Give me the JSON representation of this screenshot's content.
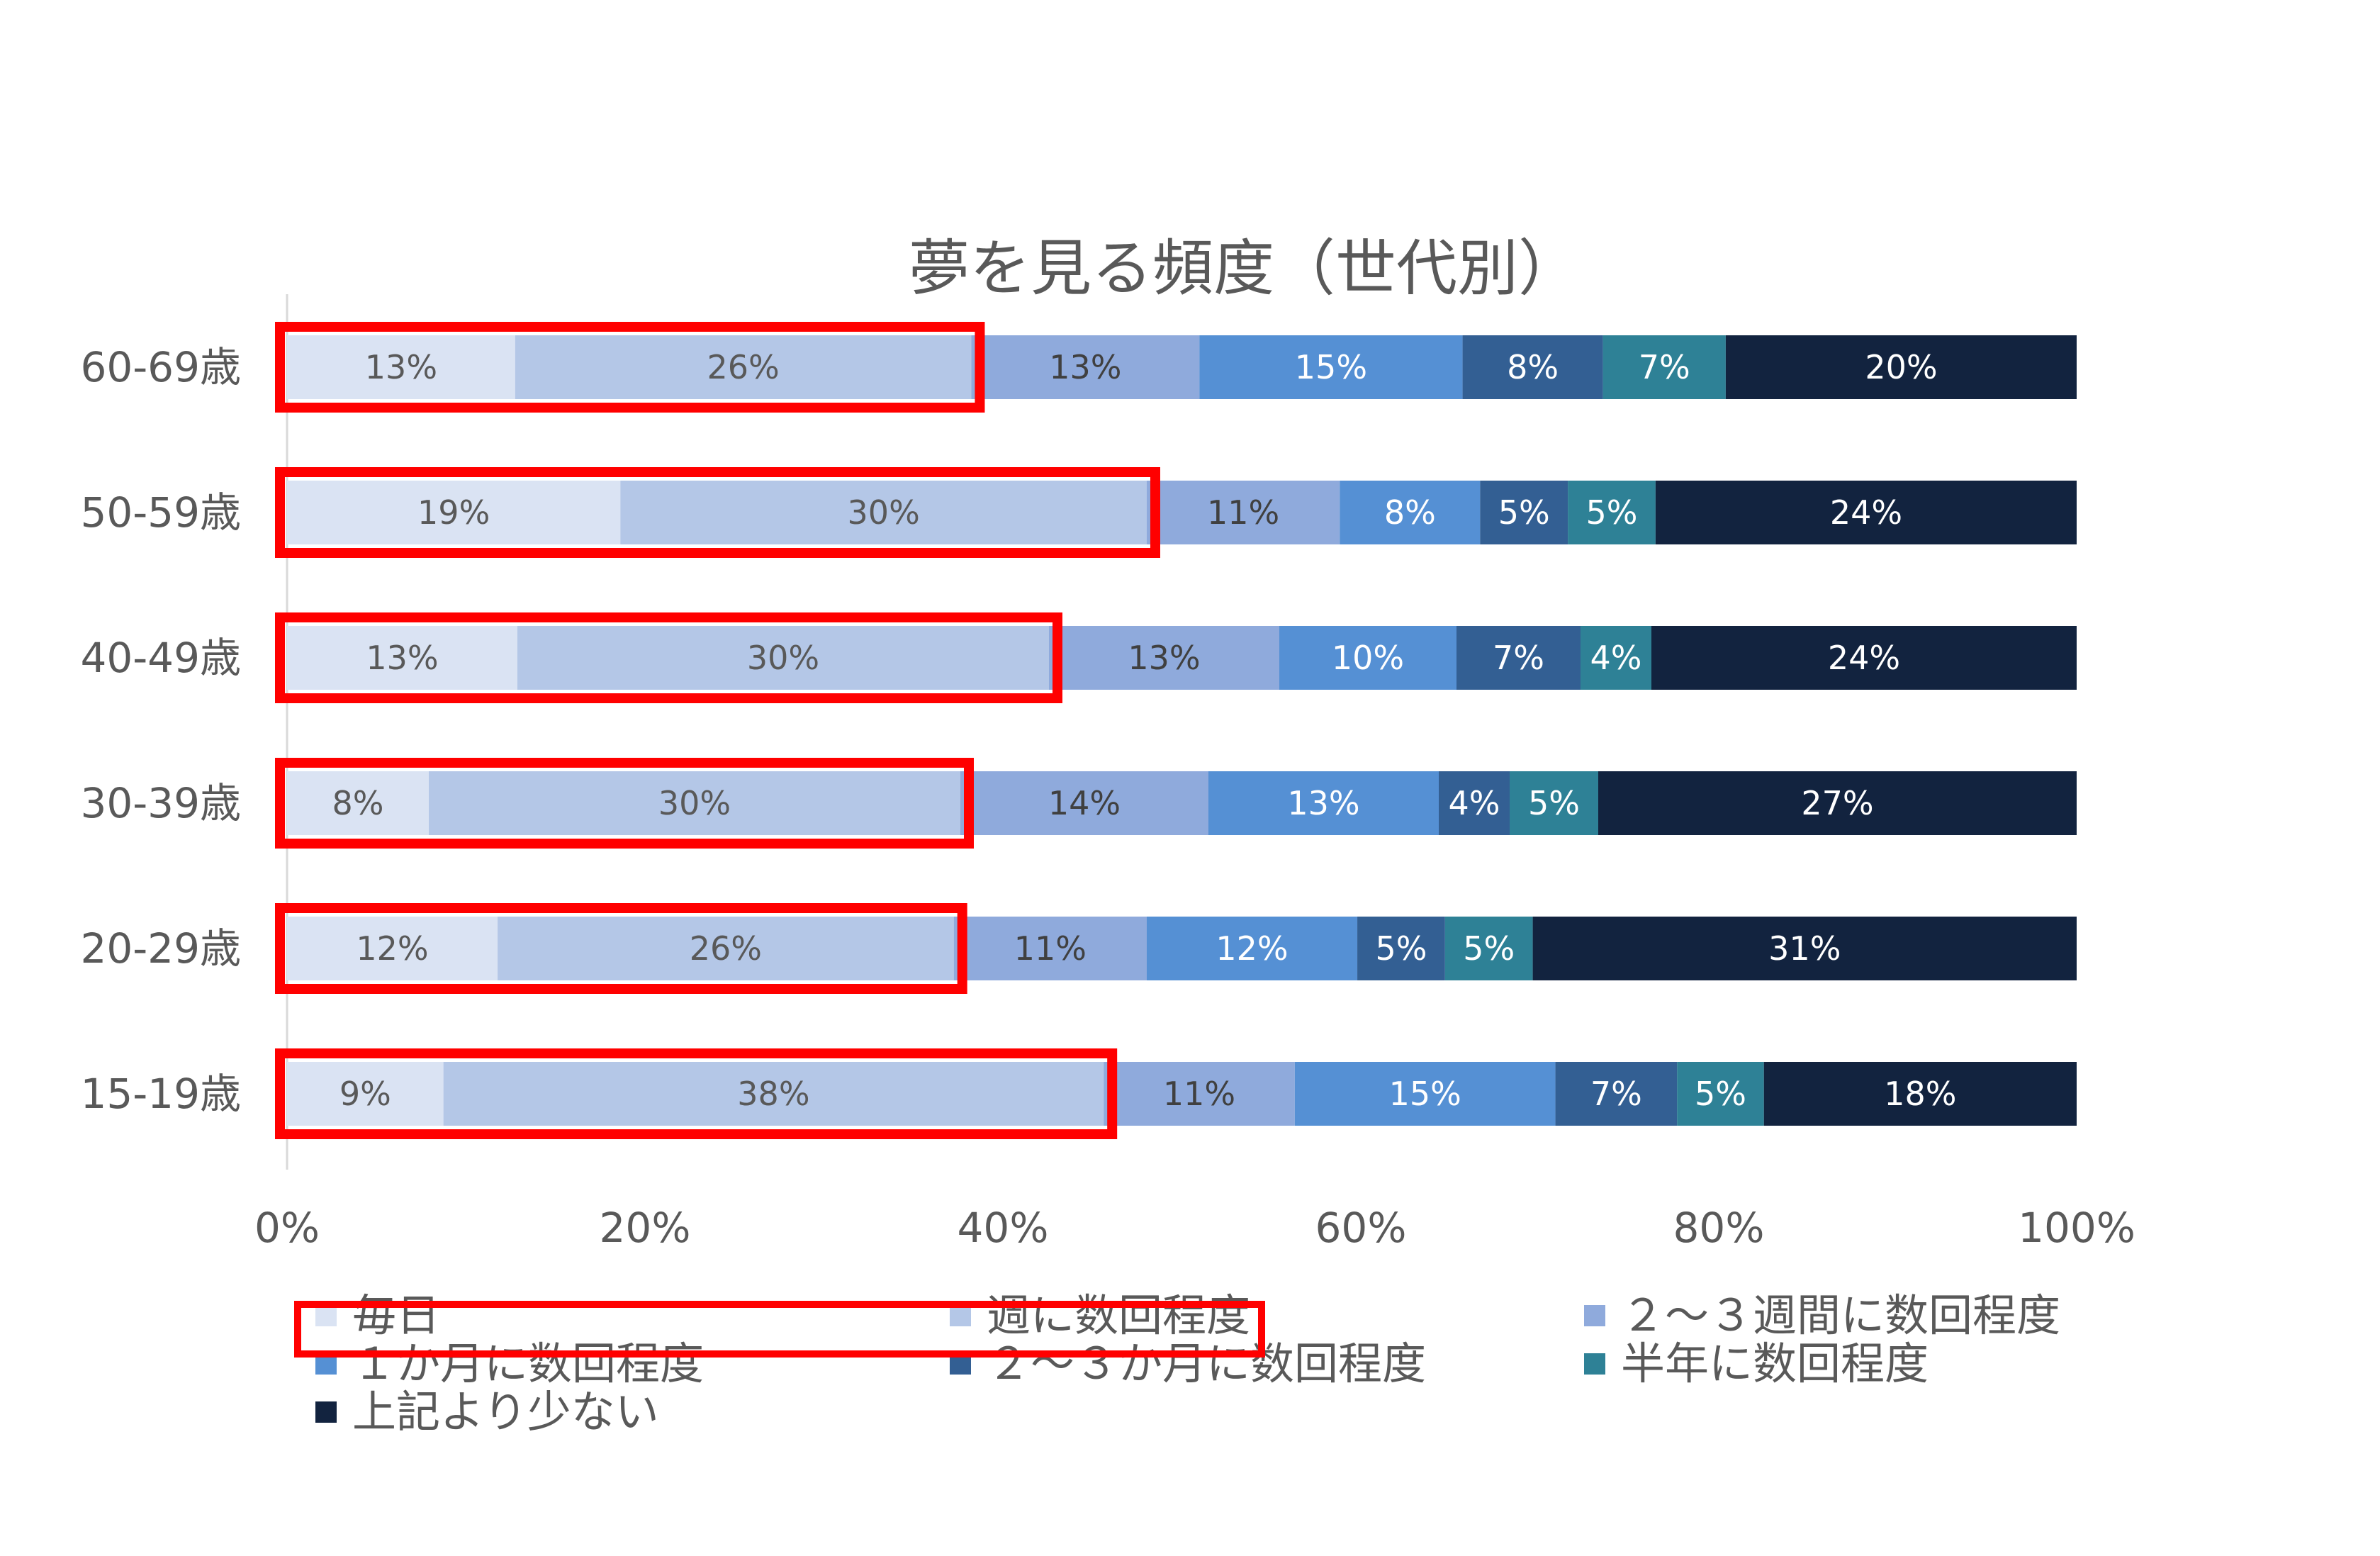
{
  "chart_data": {
    "type": "bar",
    "orientation": "horizontal",
    "stacked": "percent",
    "title": "夢を見る頻度（世代別）",
    "categories": [
      "60-69歳",
      "50-59歳",
      "40-49歳",
      "30-39歳",
      "20-29歳",
      "15-19歳"
    ],
    "series": [
      {
        "name": "毎日",
        "color": "#DAE3F3",
        "labels": [
          "13%",
          "19%",
          "13%",
          "8%",
          "12%",
          "9%"
        ],
        "values": [
          13,
          19,
          13,
          8,
          12,
          9
        ]
      },
      {
        "name": "週に数回程度",
        "color": "#B4C7E7",
        "labels": [
          "26%",
          "30%",
          "30%",
          "30%",
          "26%",
          "38%"
        ],
        "values": [
          26,
          30,
          30,
          30,
          26,
          38
        ]
      },
      {
        "name": "２～３週間に数回程度",
        "color": "#8FAADC",
        "labels": [
          "13%",
          "11%",
          "13%",
          "14%",
          "11%",
          "11%"
        ],
        "values": [
          13,
          11,
          13,
          14,
          11,
          11
        ]
      },
      {
        "name": "１か月に数回程度",
        "color": "#5590D4",
        "labels": [
          "15%",
          "8%",
          "10%",
          "13%",
          "12%",
          "15%"
        ],
        "values": [
          15,
          8,
          10,
          13,
          12,
          15
        ]
      },
      {
        "name": "２～３か月に数回程度",
        "color": "#335F93",
        "labels": [
          "8%",
          "5%",
          "7%",
          "4%",
          "5%",
          "7%"
        ],
        "values": [
          8,
          5,
          7,
          4,
          5,
          7
        ]
      },
      {
        "name": "半年に数回程度",
        "color": "#2E8196",
        "labels": [
          "7%",
          "5%",
          "4%",
          "5%",
          "5%",
          "5%"
        ],
        "values": [
          7,
          5,
          4,
          5,
          5,
          5
        ]
      },
      {
        "name": "上記より少ない",
        "color": "#12233F",
        "labels": [
          "20%",
          "24%",
          "24%",
          "27%",
          "31%",
          "18%"
        ],
        "values": [
          20,
          24,
          24,
          27,
          31,
          18
        ]
      }
    ],
    "x_ticks": [
      "0%",
      "20%",
      "40%",
      "60%",
      "80%",
      "100%"
    ],
    "xlim": [
      0,
      100
    ],
    "legend": "bottom",
    "grid": false,
    "highlight": {
      "color": "#FF0000",
      "series": [
        "毎日",
        "週に数回程度"
      ],
      "note": "red boxes around the first two segments of every bar and around their legend entries"
    }
  }
}
